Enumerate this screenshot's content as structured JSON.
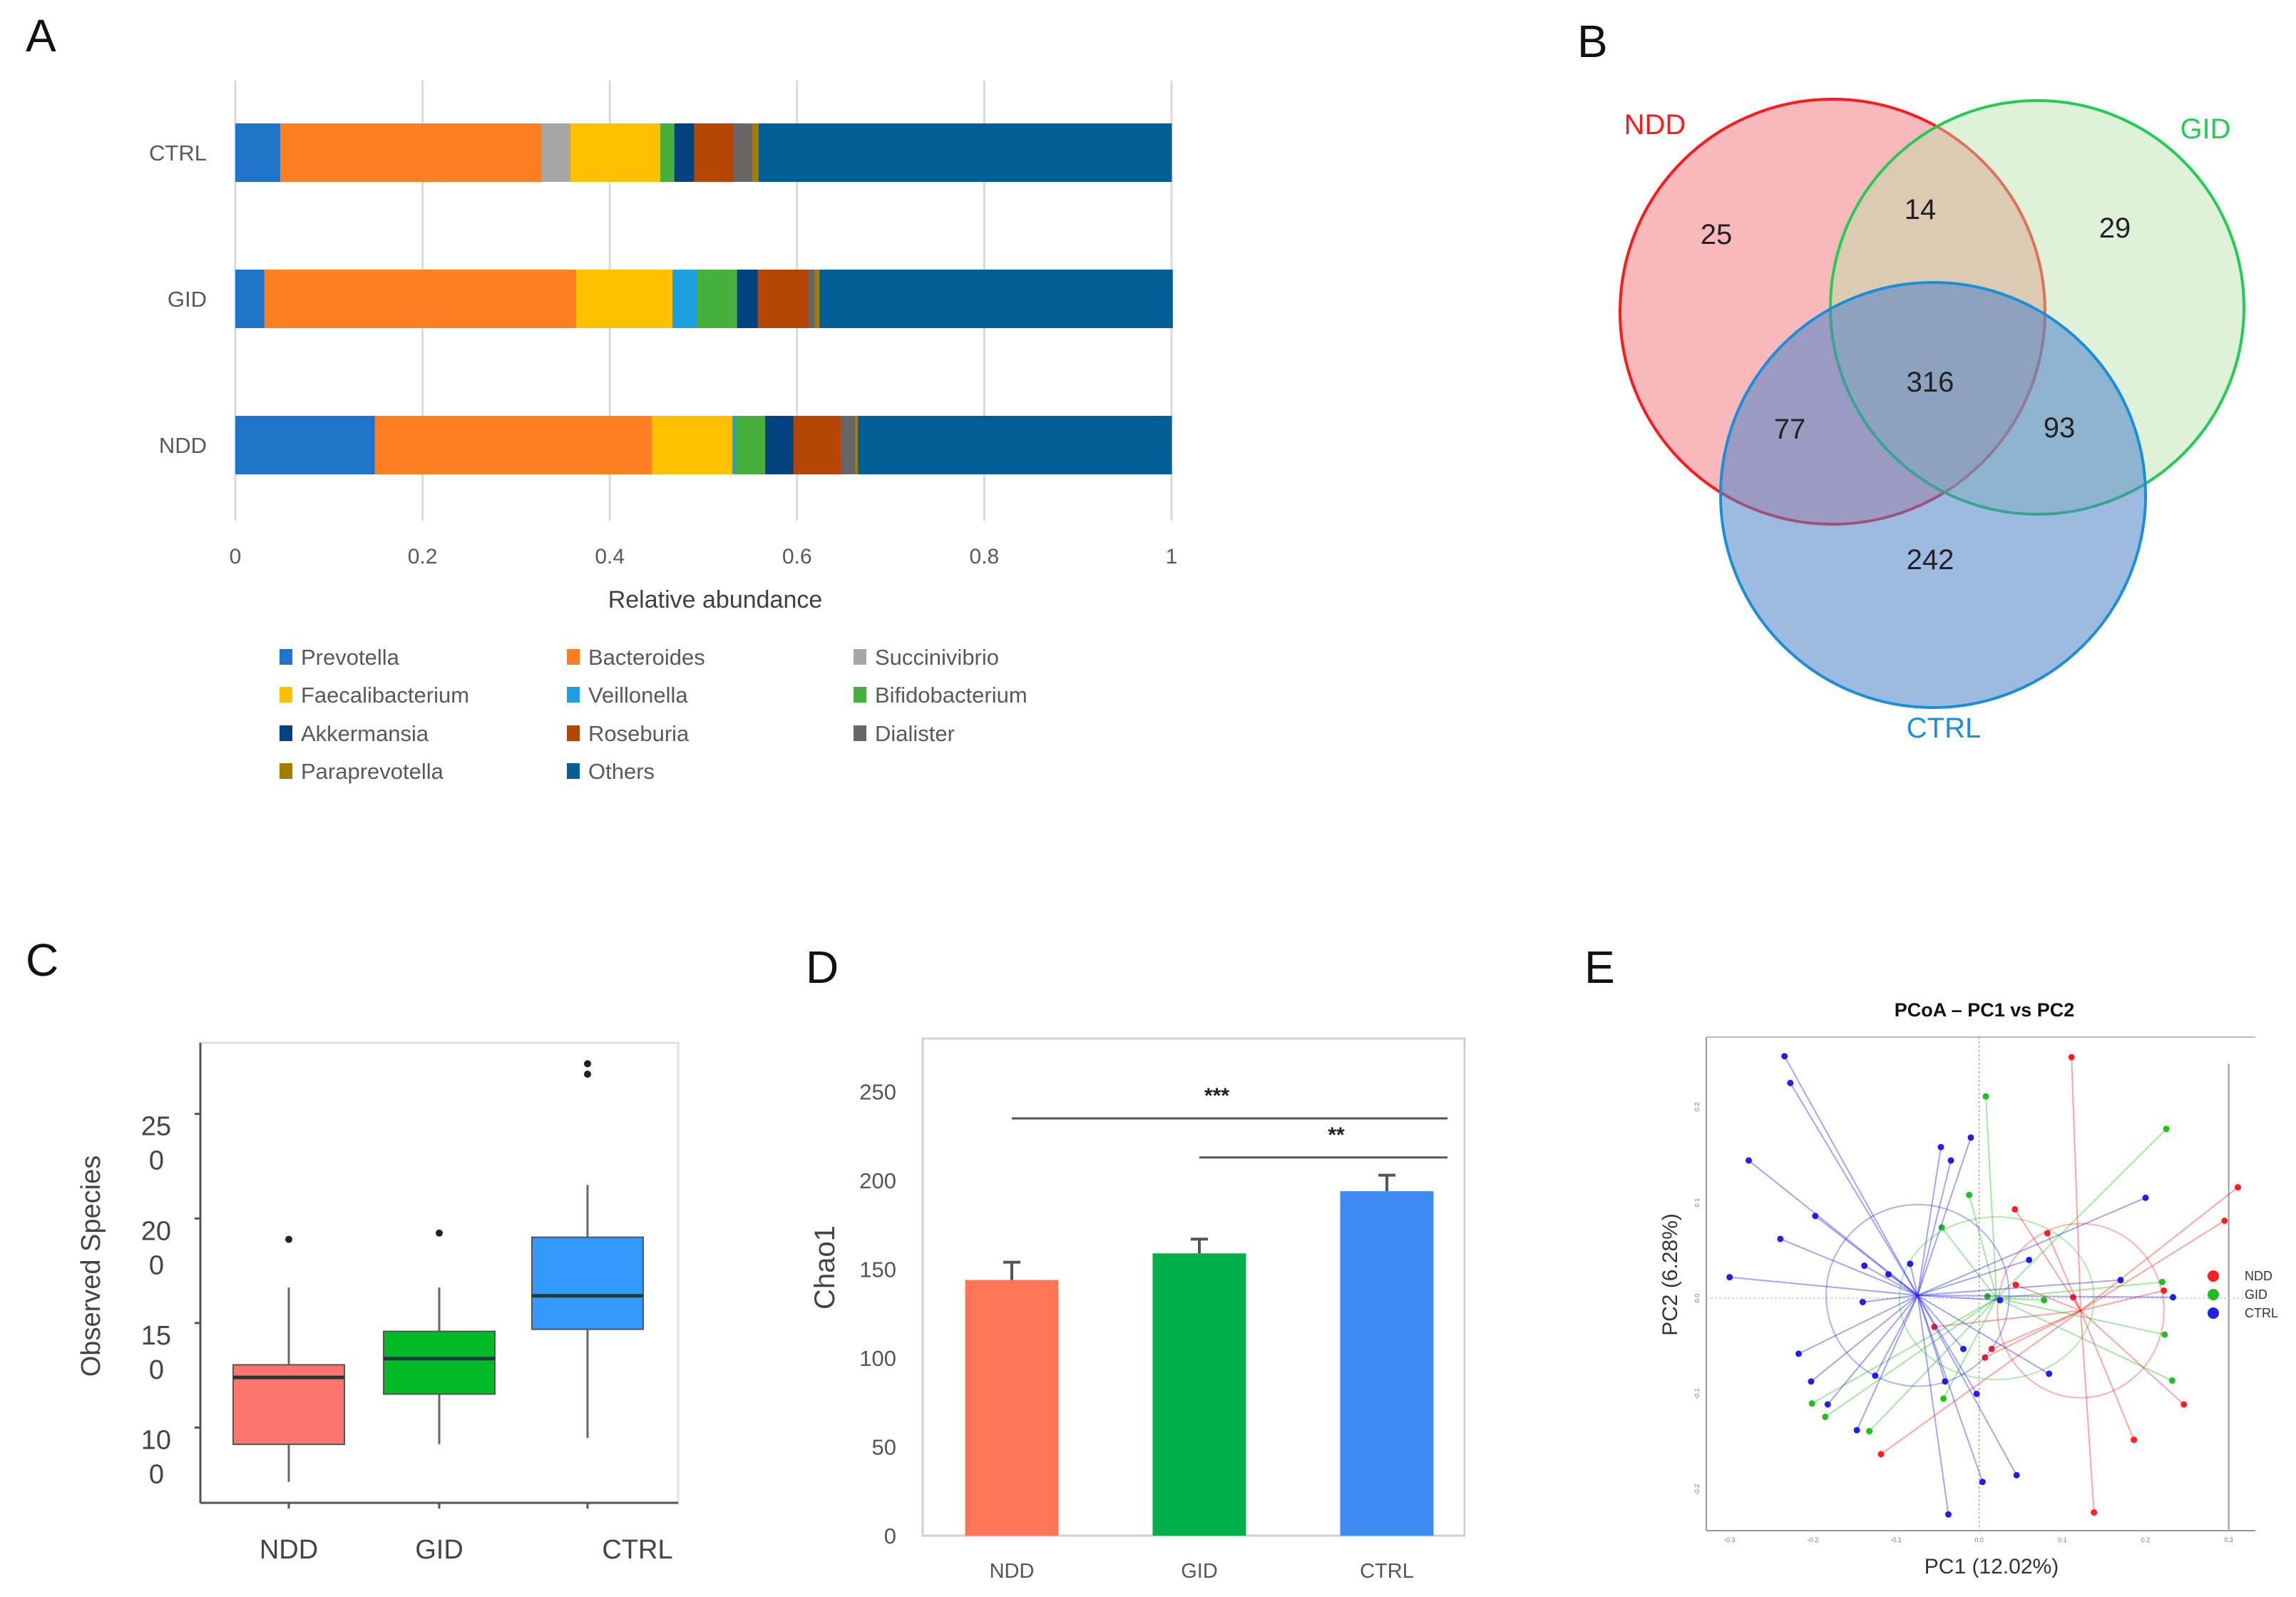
{
  "panel_labels": [
    "A",
    "B",
    "C",
    "D",
    "E"
  ],
  "chart_data": [
    {
      "panel": "A",
      "type": "bar",
      "orientation": "horizontal-stacked",
      "categories": [
        "CTRL",
        "GID",
        "NDD"
      ],
      "xlabel": "Relative abundance",
      "xlim": [
        0,
        1
      ],
      "xticks": [
        "0",
        "0.2",
        "0.4",
        "0.6",
        "0.8",
        "1"
      ],
      "grid": true,
      "legend_position": "bottom",
      "series": [
        {
          "name": "Prevotella",
          "color": "#1f74c9",
          "values": [
            0.048,
            0.031,
            0.149
          ]
        },
        {
          "name": "Bacteroides",
          "color": "#fe7f22",
          "values": [
            0.279,
            0.333,
            0.296
          ]
        },
        {
          "name": "Succinivibrio",
          "color": "#a6a6a6",
          "values": [
            0.031,
            0,
            0
          ]
        },
        {
          "name": "Faecalibacterium",
          "color": "#ffc000",
          "values": [
            0.096,
            0.103,
            0.086
          ]
        },
        {
          "name": "Veillonella",
          "color": "#1f9ee0",
          "values": [
            0,
            0.026,
            0.003
          ]
        },
        {
          "name": "Bifidobacterium",
          "color": "#47b03c",
          "values": [
            0.015,
            0.043,
            0.032
          ]
        },
        {
          "name": "Akkermansia",
          "color": "#03427e",
          "values": [
            0.021,
            0.022,
            0.03
          ]
        },
        {
          "name": "Roseburia",
          "color": "#b54502",
          "values": [
            0.042,
            0.054,
            0.051
          ]
        },
        {
          "name": "Dialister",
          "color": "#666666",
          "values": [
            0.02,
            0.007,
            0.015
          ]
        },
        {
          "name": "Paraprevotella",
          "color": "#a67c00",
          "values": [
            0.007,
            0.005,
            0.003
          ]
        },
        {
          "name": "Others",
          "color": "#015f96",
          "values": [
            0.441,
            0.377,
            0.335
          ]
        }
      ]
    },
    {
      "panel": "B",
      "type": "venn",
      "sets": [
        {
          "name": "NDD",
          "color": "#ff1a1a",
          "fill": "#f58a90"
        },
        {
          "name": "GID",
          "color": "#22cc55",
          "fill": "#b7e0a8"
        },
        {
          "name": "CTRL",
          "color": "#1a8fd8",
          "fill": "#4d82c9"
        }
      ],
      "regions": {
        "NDD_only": "25",
        "GID_only": "29",
        "CTRL_only": "242",
        "NDD_GID": "14",
        "NDD_CTRL": "77",
        "GID_CTRL": "93",
        "all": "316"
      }
    },
    {
      "panel": "C",
      "type": "box",
      "categories": [
        "NDD",
        "GID",
        "CTRL"
      ],
      "ylabel": "Observed Species",
      "ylim": [
        64,
        284
      ],
      "yticks": [
        250,
        200,
        150,
        100
      ],
      "ytick_labels": [
        "250",
        "200",
        "150",
        "100"
      ],
      "colors": [
        "#fe7570",
        "#00ba26",
        "#3399ff"
      ],
      "boxes": [
        {
          "whisker_low": 74,
          "q1": 92,
          "median": 124,
          "q3": 130,
          "whisker_high": 167,
          "outliers": [
            190
          ]
        },
        {
          "whisker_low": 92,
          "q1": 116,
          "median": 133,
          "q3": 146,
          "whisker_high": 167,
          "outliers": [
            193
          ]
        },
        {
          "whisker_low": 95,
          "q1": 147,
          "median": 163,
          "q3": 191,
          "whisker_high": 216,
          "outliers": [
            269,
            274
          ]
        }
      ]
    },
    {
      "panel": "D",
      "type": "bar",
      "categories": [
        "NDD",
        "GID",
        "CTRL"
      ],
      "values": [
        144,
        159,
        194
      ],
      "errors": [
        10,
        8,
        9
      ],
      "colors": [
        "#ff7556",
        "#00b04a",
        "#3d8bf0"
      ],
      "ylabel": "Chao1",
      "ylim": [
        0,
        280
      ],
      "yticks": [
        "0",
        "50",
        "100",
        "150",
        "200",
        "250"
      ],
      "significance": [
        {
          "from": "NDD",
          "to": "CTRL",
          "y": 235,
          "label": "***"
        },
        {
          "from": "GID",
          "to": "CTRL",
          "y": 213,
          "label": "**"
        }
      ]
    },
    {
      "panel": "E",
      "type": "scatter",
      "title": "PCoA – PC1 vs PC2",
      "xlabel": "PC1 (12.02%)",
      "ylabel": "PC2 (6.28%)",
      "xlim": [
        -0.328,
        0.332
      ],
      "ylim": [
        -0.243,
        0.273
      ],
      "xticks": [
        "-0.3",
        "-0.2",
        "-0.1",
        "0.0",
        "0.1",
        "0.2",
        "0.3"
      ],
      "yticks": [
        "0.2",
        "0.1",
        "0.0",
        "-0.1",
        "-0.2"
      ],
      "legend_position": "right",
      "groups": [
        {
          "name": "NDD",
          "color": "#ff1f1f",
          "centroid": [
            0.122,
            -0.013
          ],
          "ellipse": [
            0.1,
            0.091
          ],
          "points": [
            [
              0.111,
              0.252
            ],
            [
              0.043,
              0.093
            ],
            [
              0.082,
              0.068
            ],
            [
              0.044,
              0.014
            ],
            [
              0.113,
              0.001
            ],
            [
              0.222,
              0.008
            ],
            [
              0.295,
              0.081
            ],
            [
              0.311,
              0.116
            ],
            [
              0.246,
              -0.111
            ],
            [
              0.186,
              -0.148
            ],
            [
              0.138,
              -0.224
            ],
            [
              -0.054,
              -0.03
            ],
            [
              0.015,
              -0.053
            ],
            [
              0.007,
              -0.062
            ],
            [
              -0.118,
              -0.163
            ]
          ]
        },
        {
          "name": "GID",
          "color": "#1fbf1f",
          "centroid": [
            0.021,
            0.0
          ],
          "ellipse": [
            0.117,
            0.085
          ],
          "points": [
            [
              0.008,
              0.211
            ],
            [
              0.225,
              0.177
            ],
            [
              -0.012,
              0.108
            ],
            [
              -0.045,
              0.074
            ],
            [
              0.01,
              0.002
            ],
            [
              0.078,
              -0.002
            ],
            [
              0.22,
              0.017
            ],
            [
              0.223,
              -0.038
            ],
            [
              0.232,
              -0.086
            ],
            [
              -0.043,
              -0.105
            ],
            [
              -0.132,
              -0.139
            ],
            [
              -0.185,
              -0.124
            ],
            [
              -0.201,
              -0.11
            ]
          ]
        },
        {
          "name": "CTRL",
          "color": "#1f1fe6",
          "centroid": [
            -0.074,
            0.003
          ],
          "ellipse": [
            0.11,
            0.095
          ],
          "points": [
            [
              -0.234,
              0.253
            ],
            [
              -0.227,
              0.225
            ],
            [
              -0.277,
              0.144
            ],
            [
              -0.197,
              0.086
            ],
            [
              -0.239,
              0.062
            ],
            [
              -0.138,
              0.034
            ],
            [
              -0.109,
              0.025
            ],
            [
              -0.083,
              0.036
            ],
            [
              -0.3,
              0.022
            ],
            [
              -0.14,
              -0.004
            ],
            [
              -0.217,
              -0.058
            ],
            [
              -0.202,
              -0.087
            ],
            [
              -0.182,
              -0.111
            ],
            [
              -0.147,
              -0.138
            ],
            [
              -0.125,
              -0.081
            ],
            [
              -0.041,
              -0.087
            ],
            [
              -0.019,
              -0.053
            ],
            [
              -0.003,
              -0.1
            ],
            [
              0.004,
              -0.192
            ],
            [
              -0.037,
              -0.226
            ],
            [
              0.045,
              -0.185
            ],
            [
              0.084,
              -0.079
            ],
            [
              0.06,
              0.04
            ],
            [
              -0.046,
              0.158
            ],
            [
              -0.034,
              0.144
            ],
            [
              -0.01,
              0.168
            ],
            [
              0.2,
              0.105
            ],
            [
              0.17,
              0.019
            ],
            [
              0.233,
              0.001
            ],
            [
              0.025,
              -0.002
            ]
          ]
        }
      ]
    }
  ]
}
